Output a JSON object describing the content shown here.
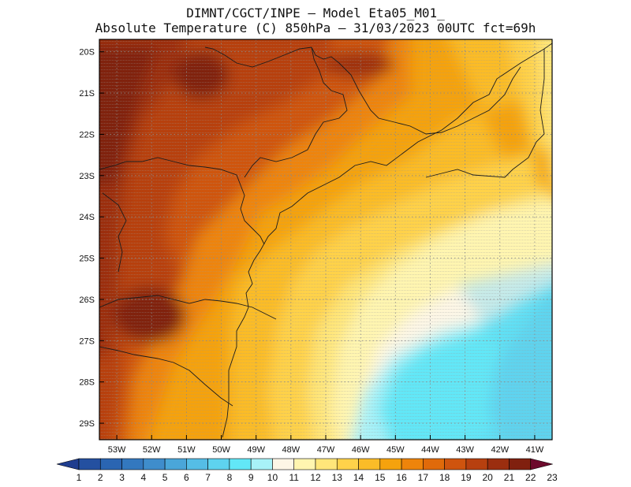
{
  "header": {
    "line1": "DIMNT/CGCT/INPE –  Model Eta05_M01_",
    "line2": "Absolute Temperature (C) 850hPa –  31/03/2023 00UTC fct=69h"
  },
  "map": {
    "lat_labels": [
      "20S",
      "21S",
      "22S",
      "23S",
      "24S",
      "25S",
      "26S",
      "27S",
      "28S",
      "29S"
    ],
    "lon_labels": [
      "53W",
      "52W",
      "51W",
      "50W",
      "49W",
      "48W",
      "47W",
      "46W",
      "45W",
      "44W",
      "43W",
      "42W",
      "41W"
    ],
    "lon_range": [
      -53.5,
      -40.5
    ],
    "lat_range": [
      -29.4,
      -19.7
    ]
  },
  "colorbar": {
    "labels": [
      "1",
      "2",
      "3",
      "4",
      "5",
      "6",
      "7",
      "8",
      "9",
      "10",
      "11",
      "12",
      "13",
      "14",
      "15",
      "16",
      "17",
      "18",
      "19",
      "20",
      "21",
      "22",
      "23"
    ],
    "colors": [
      "#1f3d8f",
      "#2450a0",
      "#2a65b2",
      "#3378bf",
      "#3f8dcc",
      "#4aa6d9",
      "#55bde6",
      "#5ed3ef",
      "#62e7f7",
      "#a8f2f8",
      "#fdf6e6",
      "#fff5b0",
      "#ffe67a",
      "#ffd24a",
      "#fbbc28",
      "#f5a20d",
      "#ee840b",
      "#e06a0a",
      "#cf540e",
      "#b7400f",
      "#9b2e0f",
      "#80200f",
      "#6d0a2c"
    ]
  }
}
